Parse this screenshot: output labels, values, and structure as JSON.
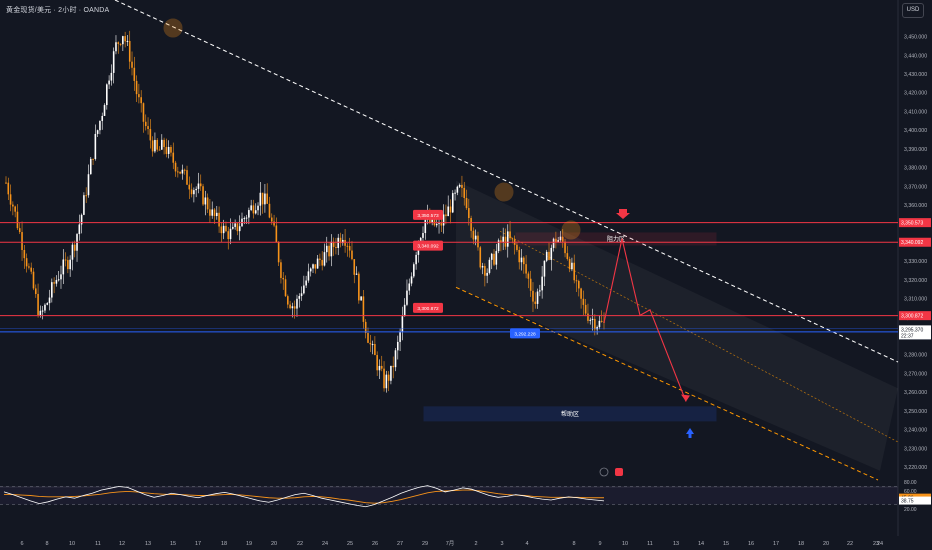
{
  "header": {
    "symbol_title": "黄金现货/美元 · 2小时 · OANDA",
    "currency": "USD"
  },
  "colors": {
    "background": "#131722",
    "up_candle": "#ffffff",
    "down_candle": "#f7931a",
    "red_lines": "#f23645",
    "blue_lines": "#2962ff",
    "trend_line": "#ffffff",
    "channel_line": "#ff9800",
    "rsi_line": "#ffffff",
    "rsi_ma": "#f7931a"
  },
  "chart_data": [
    {
      "type": "candlestick",
      "instrument": "黄金现货/美元",
      "timeframe": "2小时",
      "ylim": [
        3215,
        3463
      ],
      "y_ticks": [
        3450,
        3440,
        3430,
        3420,
        3410,
        3400,
        3390,
        3380,
        3370,
        3360,
        3350,
        3340,
        3330,
        3320,
        3310,
        3300,
        3290,
        3280,
        3270,
        3260,
        3250,
        3240,
        3230,
        3220
      ],
      "y_tick_labels": [
        "3,450.000",
        "3,440.000",
        "3,430.000",
        "3,420.000",
        "3,410.000",
        "3,400.000",
        "3,390.000",
        "3,380.000",
        "3,370.000",
        "3,360.000",
        "3,350.000",
        "3,340.000",
        "3,330.000",
        "3,320.000",
        "3,310.000",
        "3,300.000",
        "3,290.000",
        "3,280.000",
        "3,270.000",
        "3,260.000",
        "3,250.000",
        "3,240.000",
        "3,230.000",
        "3,220.000"
      ],
      "x_labels": [
        "6",
        "8",
        "10",
        "11",
        "12",
        "13",
        "15",
        "17",
        "18",
        "19",
        "20",
        "22",
        "24",
        "25",
        "26",
        "27",
        "29",
        "7月",
        "2",
        "3",
        "4",
        "8",
        "9",
        "10",
        "11",
        "13",
        "14",
        "15",
        "16",
        "17",
        "18",
        "20",
        "22",
        "23",
        "24"
      ],
      "price_path": [
        3372,
        3360,
        3345,
        3330,
        3315,
        3300,
        3308,
        3318,
        3325,
        3330,
        3340,
        3355,
        3375,
        3395,
        3410,
        3430,
        3445,
        3452,
        3440,
        3420,
        3405,
        3395,
        3388,
        3392,
        3385,
        3380,
        3375,
        3370,
        3368,
        3362,
        3355,
        3350,
        3345,
        3345,
        3350,
        3355,
        3360,
        3365,
        3360,
        3345,
        3325,
        3310,
        3305,
        3315,
        3322,
        3328,
        3332,
        3335,
        3340,
        3345,
        3338,
        3320,
        3300,
        3285,
        3275,
        3265,
        3270,
        3285,
        3305,
        3325,
        3342,
        3352,
        3350,
        3348,
        3355,
        3362,
        3368,
        3362,
        3345,
        3330,
        3325,
        3332,
        3340,
        3342,
        3338,
        3330,
        3320,
        3308,
        3322,
        3335,
        3342,
        3340,
        3330,
        3315,
        3305,
        3300,
        3297,
        3296
      ],
      "last_price": "3,295.370",
      "countdown": "22:37",
      "levels": [
        {
          "name": "resistance_upper",
          "price": 3350.573,
          "label": "3,350.573"
        },
        {
          "name": "resistance_lower",
          "price": 3340.092,
          "label": "3,340.092"
        },
        {
          "name": "support_red",
          "price": 3300.872,
          "label": "3,300.872"
        },
        {
          "name": "support_blue",
          "price": 3292.228,
          "label": "3,292.228"
        }
      ],
      "zones": [
        {
          "name": "resistance_zone",
          "label": "阻力区",
          "price_top": 3344,
          "price_bottom": 3339
        },
        {
          "name": "support_zone",
          "label": "帮助区",
          "price_top": 3250,
          "price_bottom": 3245
        }
      ],
      "projection_path_prices": [
        3297,
        3342,
        3301,
        3304,
        3255
      ]
    },
    {
      "type": "line",
      "name": "RSI",
      "ylim": [
        20,
        80
      ],
      "y_ticks": [
        80,
        60,
        20
      ],
      "y_tick_labels": [
        "80.00",
        "60.00",
        "20.00"
      ],
      "bands": [
        70,
        30
      ],
      "values_rsi": [
        58,
        52,
        45,
        38,
        32,
        36,
        42,
        47,
        44,
        50,
        55,
        62,
        66,
        70,
        68,
        60,
        52,
        46,
        50,
        55,
        52,
        48,
        45,
        50,
        54,
        57,
        53,
        48,
        43,
        38,
        35,
        40,
        46,
        52,
        55,
        50,
        44,
        40,
        36,
        32,
        28,
        25,
        30,
        38,
        46,
        55,
        62,
        68,
        72,
        66,
        58,
        62,
        67,
        64,
        57,
        50,
        46,
        48,
        52,
        49,
        45,
        42,
        40,
        44,
        47,
        45,
        42,
        40,
        38
      ],
      "values_ma": [
        52,
        52,
        51,
        50,
        48,
        47,
        47,
        47,
        48,
        49,
        51,
        53,
        56,
        58,
        59,
        58,
        56,
        54,
        53,
        52,
        52,
        51,
        50,
        50,
        51,
        52,
        52,
        51,
        49,
        47,
        45,
        44,
        44,
        45,
        47,
        48,
        47,
        45,
        42,
        40,
        37,
        34,
        33,
        34,
        37,
        41,
        46,
        51,
        56,
        59,
        60,
        61,
        62,
        62,
        60,
        57,
        54,
        52,
        51,
        50,
        48,
        47,
        46,
        46,
        46,
        46,
        45,
        45,
        45
      ],
      "last_rsi": "38.75",
      "last_ma": "45.26"
    }
  ]
}
